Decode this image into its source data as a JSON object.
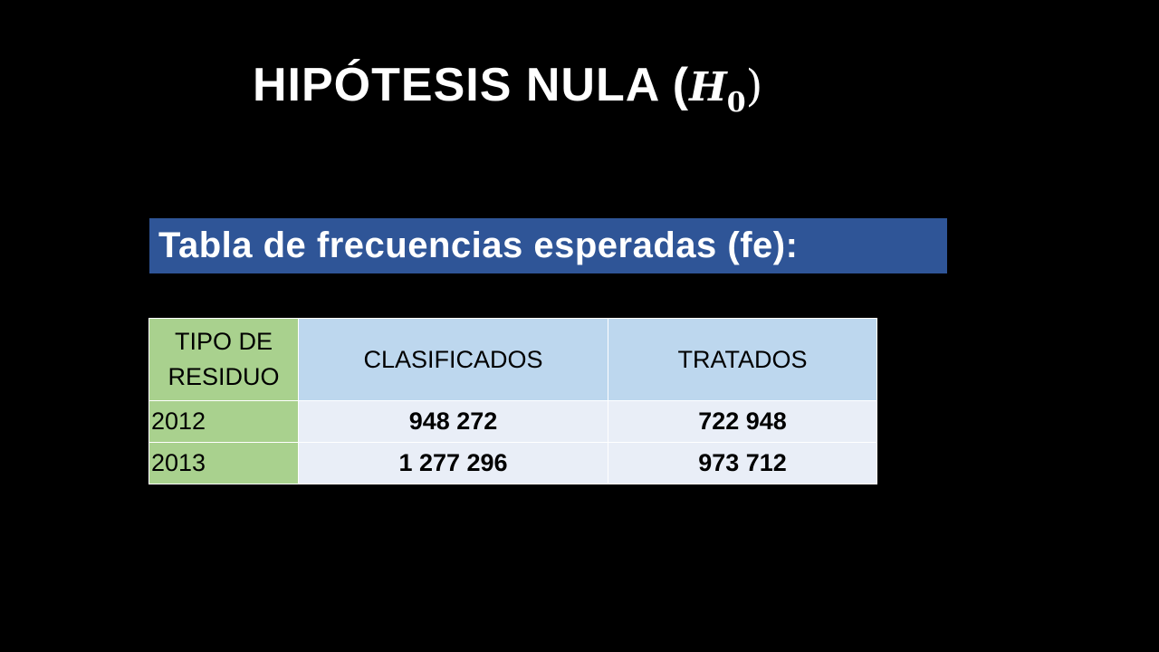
{
  "title": {
    "text": "HIPÓTESIS NULA (",
    "math_var": "H",
    "math_sub": "0",
    "math_close": ")"
  },
  "subtitle": "Tabla de frecuencias esperadas (fe):",
  "colors": {
    "background": "#000000",
    "banner": "#2f5597",
    "label_cells": "#a9d18e",
    "header_cells": "#bdd7ee",
    "data_cells": "#e9eef7"
  },
  "table": {
    "header": {
      "first_line1": "TIPO DE",
      "first_line2": "RESIDUO",
      "columns": [
        "CLASIFICADOS",
        "TRATADOS"
      ]
    },
    "rows": [
      {
        "label": "2012",
        "values": [
          "948 272",
          "722 948"
        ]
      },
      {
        "label": "2013",
        "values": [
          "1 277 296",
          "973 712"
        ]
      }
    ]
  }
}
